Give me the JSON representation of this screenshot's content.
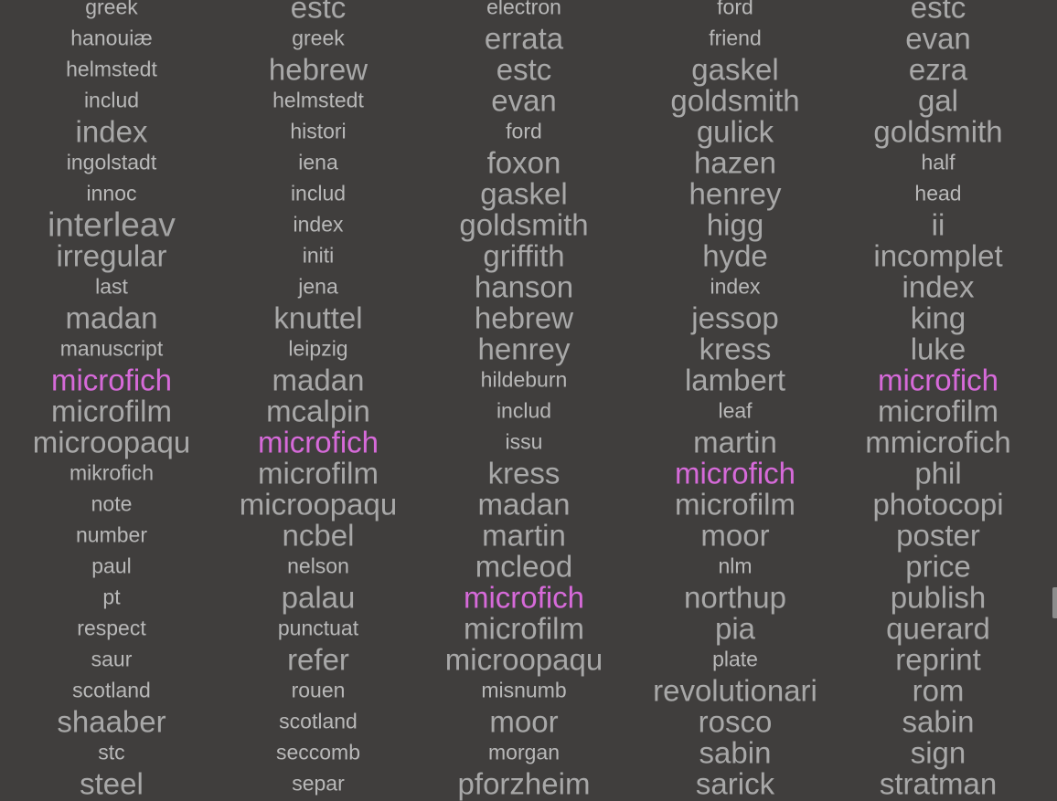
{
  "highlight_color": "#d66ad9",
  "word_color": "#b4b4b4",
  "background_color": "#403e3d",
  "columns": [
    {
      "words": [
        {
          "t": "greek",
          "s": 1
        },
        {
          "t": "hanouiæ",
          "s": 1
        },
        {
          "t": "helmstedt",
          "s": 1
        },
        {
          "t": "includ",
          "s": 1
        },
        {
          "t": "index",
          "s": 2
        },
        {
          "t": "ingolstadt",
          "s": 1
        },
        {
          "t": "innoc",
          "s": 1
        },
        {
          "t": "interleav",
          "s": 3
        },
        {
          "t": "irregular",
          "s": 2
        },
        {
          "t": "last",
          "s": 1
        },
        {
          "t": "madan",
          "s": 2
        },
        {
          "t": "manuscript",
          "s": 1
        },
        {
          "t": "microfich",
          "s": 2,
          "hl": true
        },
        {
          "t": "microfilm",
          "s": 2
        },
        {
          "t": "microopaqu",
          "s": 2
        },
        {
          "t": "mikrofich",
          "s": 1
        },
        {
          "t": "note",
          "s": 1
        },
        {
          "t": "number",
          "s": 1
        },
        {
          "t": "paul",
          "s": 1
        },
        {
          "t": "pt",
          "s": 1
        },
        {
          "t": "respect",
          "s": 1
        },
        {
          "t": "saur",
          "s": 1
        },
        {
          "t": "scotland",
          "s": 1
        },
        {
          "t": "shaaber",
          "s": 2
        },
        {
          "t": "stc",
          "s": 1
        },
        {
          "t": "steel",
          "s": 2
        }
      ]
    },
    {
      "words": [
        {
          "t": "estc",
          "s": 2
        },
        {
          "t": "greek",
          "s": 1
        },
        {
          "t": "hebrew",
          "s": 2
        },
        {
          "t": "helmstedt",
          "s": 1
        },
        {
          "t": "histori",
          "s": 1
        },
        {
          "t": "iena",
          "s": 1
        },
        {
          "t": "includ",
          "s": 1
        },
        {
          "t": "index",
          "s": 1
        },
        {
          "t": "initi",
          "s": 1
        },
        {
          "t": "jena",
          "s": 1
        },
        {
          "t": "knuttel",
          "s": 2
        },
        {
          "t": "leipzig",
          "s": 1
        },
        {
          "t": "madan",
          "s": 2
        },
        {
          "t": "mcalpin",
          "s": 2
        },
        {
          "t": "microfich",
          "s": 2,
          "hl": true
        },
        {
          "t": "microfilm",
          "s": 2
        },
        {
          "t": "microopaqu",
          "s": 2
        },
        {
          "t": "ncbel",
          "s": 2
        },
        {
          "t": "nelson",
          "s": 1
        },
        {
          "t": "palau",
          "s": 2
        },
        {
          "t": "punctuat",
          "s": 1
        },
        {
          "t": "refer",
          "s": 2
        },
        {
          "t": "rouen",
          "s": 1
        },
        {
          "t": "scotland",
          "s": 1
        },
        {
          "t": "seccomb",
          "s": 1
        },
        {
          "t": "separ",
          "s": 1
        }
      ]
    },
    {
      "words": [
        {
          "t": "electron",
          "s": 1
        },
        {
          "t": "errata",
          "s": 2
        },
        {
          "t": "estc",
          "s": 2
        },
        {
          "t": "evan",
          "s": 2
        },
        {
          "t": "ford",
          "s": 1
        },
        {
          "t": "foxon",
          "s": 2
        },
        {
          "t": "gaskel",
          "s": 2
        },
        {
          "t": "goldsmith",
          "s": 2
        },
        {
          "t": "griffith",
          "s": 2
        },
        {
          "t": "hanson",
          "s": 2
        },
        {
          "t": "hebrew",
          "s": 2
        },
        {
          "t": "henrey",
          "s": 2
        },
        {
          "t": "hildeburn",
          "s": 1
        },
        {
          "t": "includ",
          "s": 1
        },
        {
          "t": "issu",
          "s": 1
        },
        {
          "t": "kress",
          "s": 2
        },
        {
          "t": "madan",
          "s": 2
        },
        {
          "t": "martin",
          "s": 2
        },
        {
          "t": "mcleod",
          "s": 2
        },
        {
          "t": "microfich",
          "s": 2,
          "hl": true
        },
        {
          "t": "microfilm",
          "s": 2
        },
        {
          "t": "microopaqu",
          "s": 2
        },
        {
          "t": "misnumb",
          "s": 1
        },
        {
          "t": "moor",
          "s": 2
        },
        {
          "t": "morgan",
          "s": 1
        },
        {
          "t": "pforzheim",
          "s": 2
        }
      ]
    },
    {
      "words": [
        {
          "t": "ford",
          "s": 1
        },
        {
          "t": "friend",
          "s": 1
        },
        {
          "t": "gaskel",
          "s": 2
        },
        {
          "t": "goldsmith",
          "s": 2
        },
        {
          "t": "gulick",
          "s": 2
        },
        {
          "t": "hazen",
          "s": 2
        },
        {
          "t": "henrey",
          "s": 2
        },
        {
          "t": "higg",
          "s": 2
        },
        {
          "t": "hyde",
          "s": 2
        },
        {
          "t": "index",
          "s": 1
        },
        {
          "t": "jessop",
          "s": 2
        },
        {
          "t": "kress",
          "s": 2
        },
        {
          "t": "lambert",
          "s": 2
        },
        {
          "t": "leaf",
          "s": 1
        },
        {
          "t": "martin",
          "s": 2
        },
        {
          "t": "microfich",
          "s": 2,
          "hl": true
        },
        {
          "t": "microfilm",
          "s": 2
        },
        {
          "t": "moor",
          "s": 2
        },
        {
          "t": "nlm",
          "s": 1
        },
        {
          "t": "northup",
          "s": 2
        },
        {
          "t": "pia",
          "s": 2
        },
        {
          "t": "plate",
          "s": 1
        },
        {
          "t": "revolutionari",
          "s": 2
        },
        {
          "t": "rosco",
          "s": 2
        },
        {
          "t": "sabin",
          "s": 2
        },
        {
          "t": "sarick",
          "s": 2
        }
      ]
    },
    {
      "words": [
        {
          "t": "estc",
          "s": 2
        },
        {
          "t": "evan",
          "s": 2
        },
        {
          "t": "ezra",
          "s": 2
        },
        {
          "t": "gal",
          "s": 2
        },
        {
          "t": "goldsmith",
          "s": 2
        },
        {
          "t": "half",
          "s": 1
        },
        {
          "t": "head",
          "s": 1
        },
        {
          "t": "ii",
          "s": 2
        },
        {
          "t": "incomplet",
          "s": 2
        },
        {
          "t": "index",
          "s": 2
        },
        {
          "t": "king",
          "s": 2
        },
        {
          "t": "luke",
          "s": 2
        },
        {
          "t": "microfich",
          "s": 2,
          "hl": true
        },
        {
          "t": "microfilm",
          "s": 2
        },
        {
          "t": "mmicrofich",
          "s": 2
        },
        {
          "t": "phil",
          "s": 2
        },
        {
          "t": "photocopi",
          "s": 2
        },
        {
          "t": "poster",
          "s": 2
        },
        {
          "t": "price",
          "s": 2
        },
        {
          "t": "publish",
          "s": 2
        },
        {
          "t": "querard",
          "s": 2
        },
        {
          "t": "reprint",
          "s": 2
        },
        {
          "t": "rom",
          "s": 2
        },
        {
          "t": "sabin",
          "s": 2
        },
        {
          "t": "sign",
          "s": 2
        },
        {
          "t": "stratman",
          "s": 2
        }
      ]
    }
  ]
}
